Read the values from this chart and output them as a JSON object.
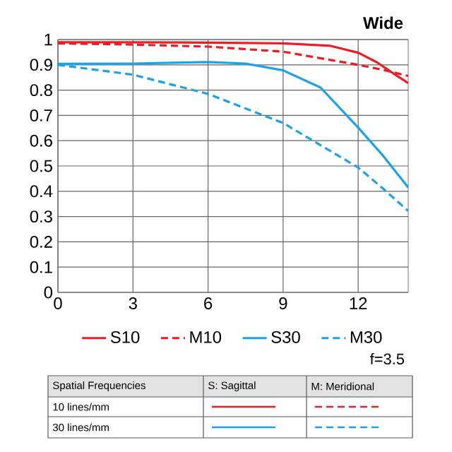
{
  "chart_data": {
    "type": "line",
    "title": "Wide",
    "xlim": [
      0,
      14
    ],
    "ylim": [
      0,
      1
    ],
    "xticks": [
      0,
      3,
      6,
      9,
      12
    ],
    "yticks": [
      0,
      0.1,
      0.2,
      0.3,
      0.4,
      0.5,
      0.6,
      0.7,
      0.8,
      0.9,
      1
    ],
    "grid": true,
    "legend": "bottom",
    "series": [
      {
        "name": "S10",
        "color": "#ee1c25",
        "line_style": "solid",
        "x": [
          0,
          3,
          6,
          9,
          10.9,
          12,
          12.75,
          13.5,
          14
        ],
        "values": [
          0.989,
          0.989,
          0.988,
          0.985,
          0.975,
          0.948,
          0.91,
          0.86,
          0.828
        ]
      },
      {
        "name": "M10",
        "color": "#ee1c25",
        "line_style": "dashed",
        "x": [
          0,
          3,
          6,
          9,
          12,
          13,
          14
        ],
        "values": [
          0.985,
          0.98,
          0.972,
          0.952,
          0.9,
          0.88,
          0.856
        ]
      },
      {
        "name": "S30",
        "color": "#1aa3e8",
        "line_style": "solid",
        "x": [
          0,
          3,
          6,
          7.5,
          9,
          10.5,
          12,
          13,
          14
        ],
        "values": [
          0.904,
          0.905,
          0.911,
          0.905,
          0.878,
          0.81,
          0.652,
          0.54,
          0.415
        ]
      },
      {
        "name": "M30",
        "color": "#1aa3e8",
        "line_style": "dashed",
        "x": [
          0,
          3,
          6,
          9,
          12,
          13,
          14
        ],
        "values": [
          0.9,
          0.861,
          0.785,
          0.67,
          0.494,
          0.41,
          0.322
        ]
      }
    ],
    "annotations": [
      "f=3.5",
      "Spatial Frequencies",
      "S: Sagittal",
      "M: Meridional",
      "10 lines/mm",
      "30 lines/mm"
    ]
  }
}
